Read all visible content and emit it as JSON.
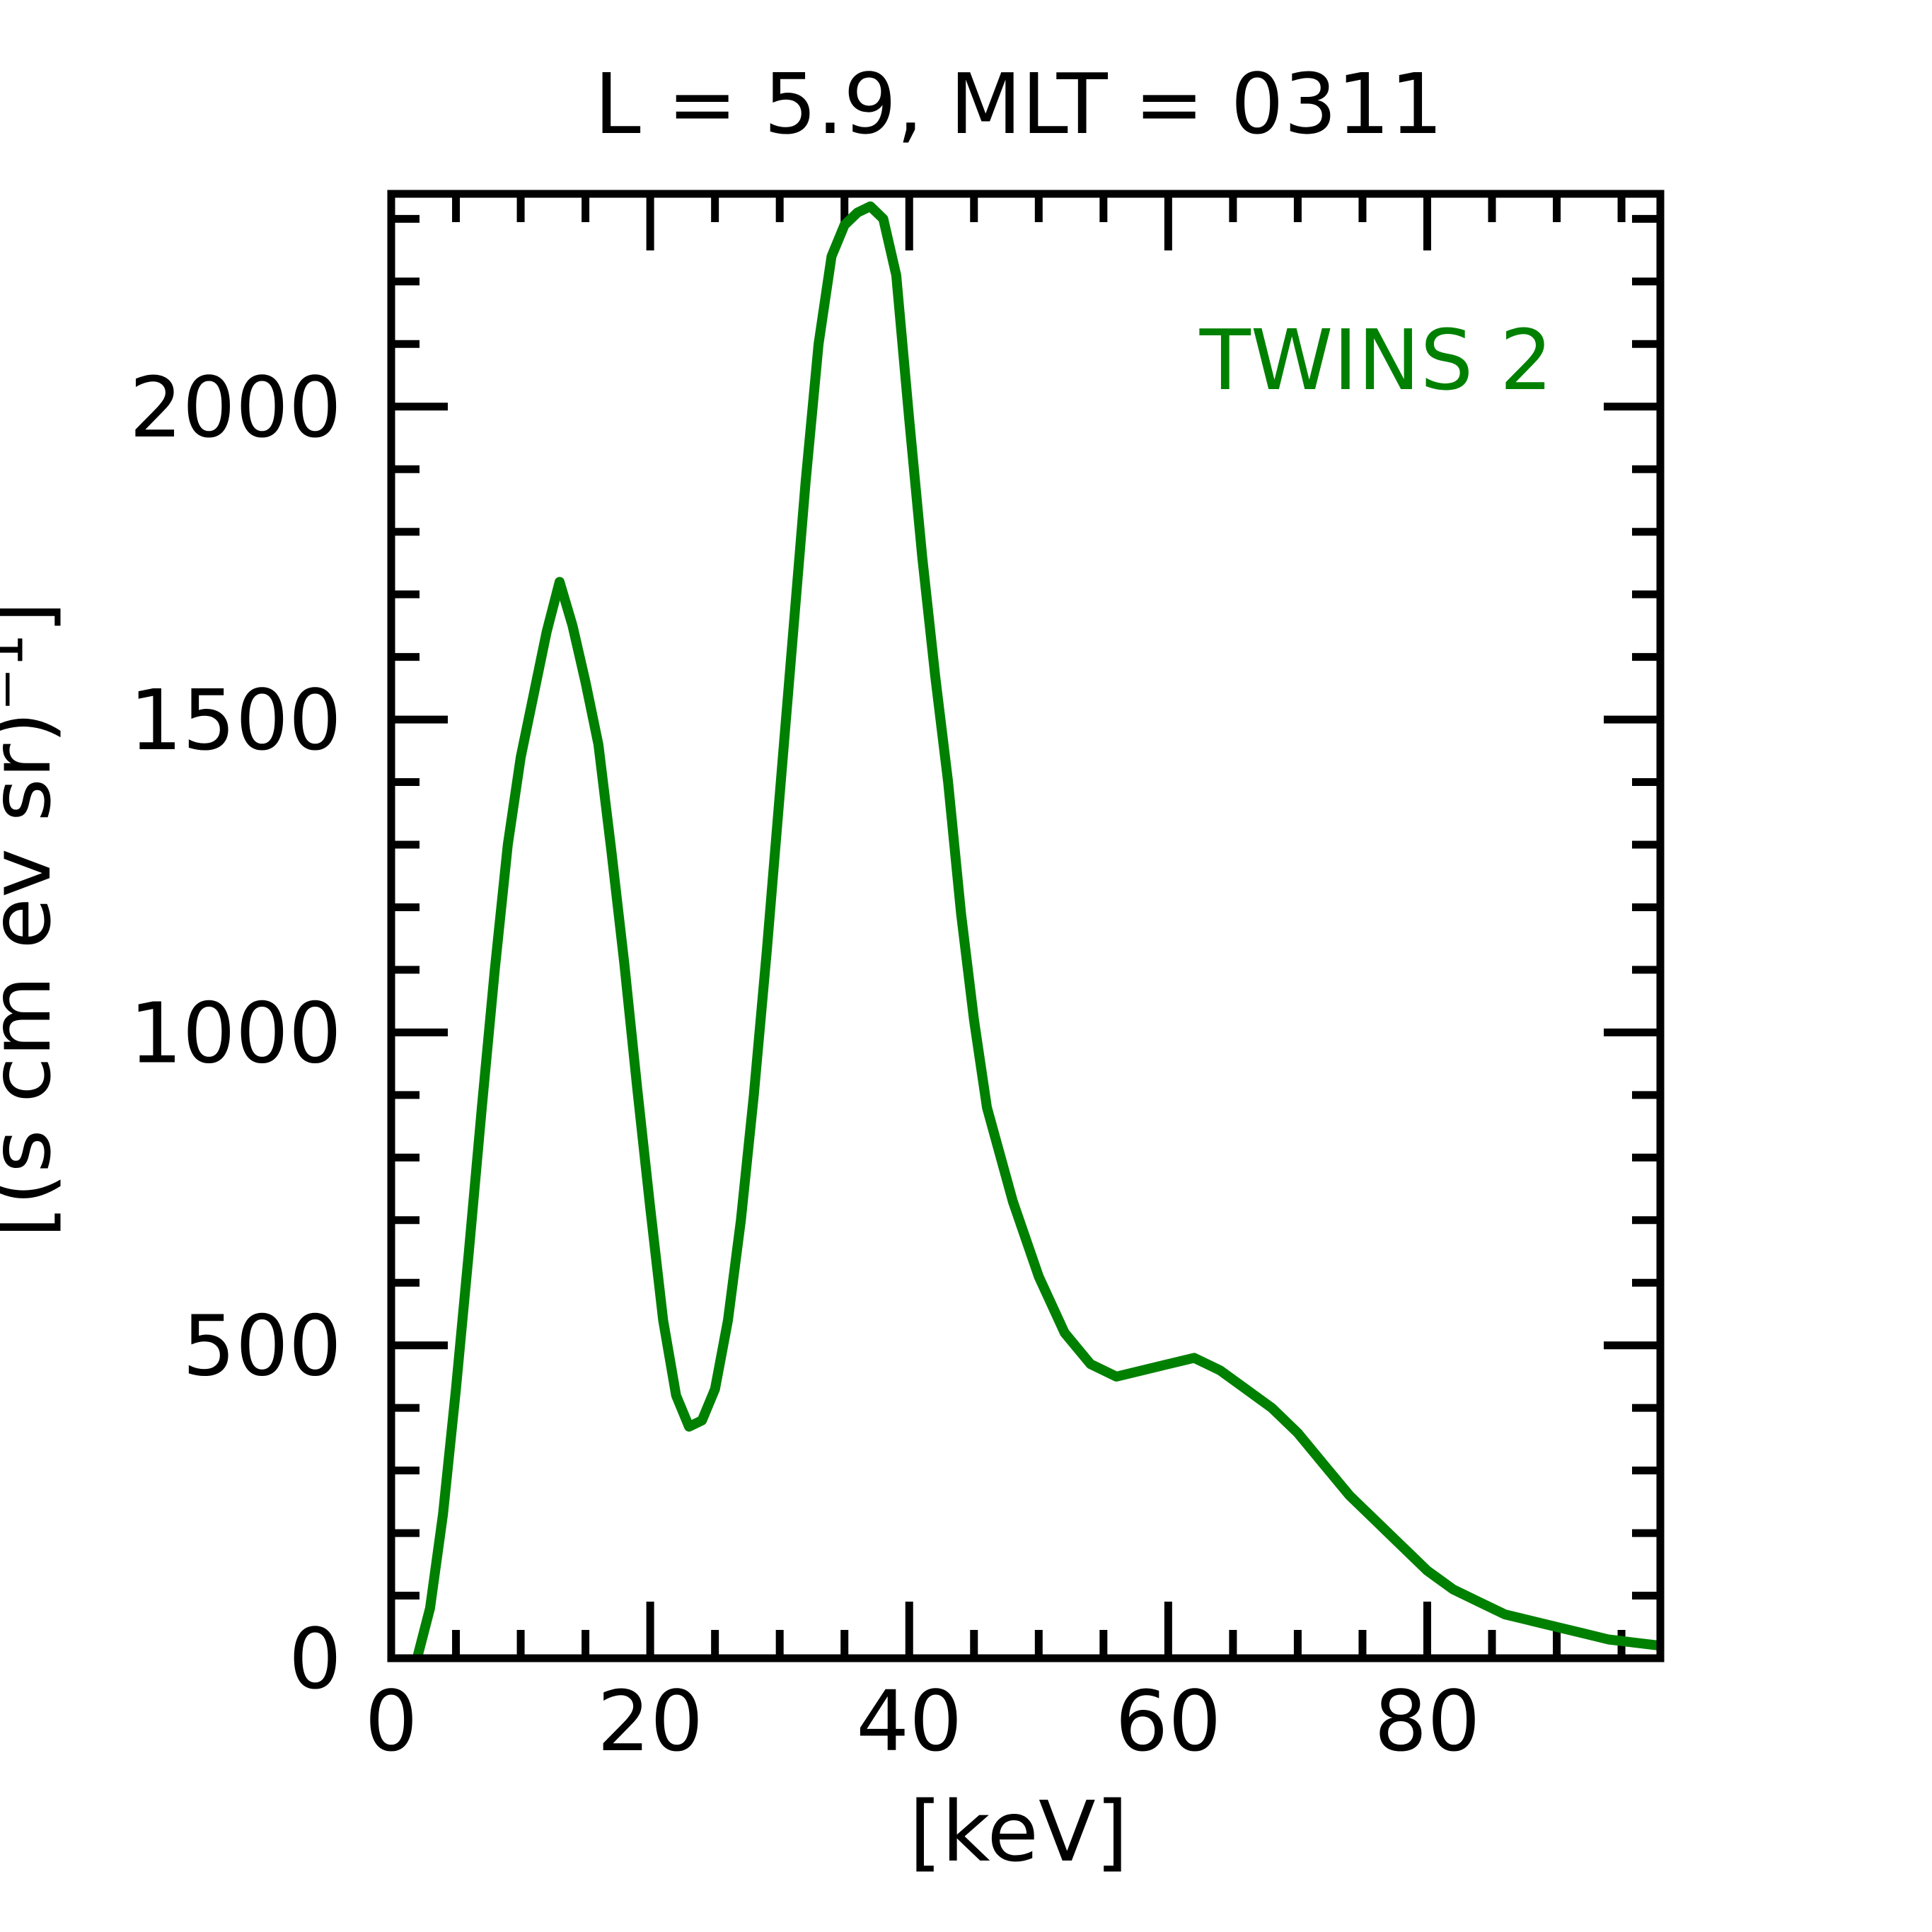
{
  "chart_data": {
    "type": "line",
    "title": "L =  5.9, MLT = 0311",
    "xlabel": "[keV]",
    "ylabel": "[(s cm ev sr)⁻¹]",
    "xlim": [
      0,
      98
    ],
    "ylim": [
      0,
      2340
    ],
    "x_ticks": [
      0,
      20,
      40,
      60,
      80
    ],
    "x_tick_labels": [
      "0",
      "20",
      "40",
      "60",
      "80"
    ],
    "y_ticks": [
      0,
      500,
      1000,
      1500,
      2000
    ],
    "y_tick_labels": [
      "0",
      "500",
      "1000",
      "1500",
      "2000"
    ],
    "x_minor_step": 5,
    "y_minor_step": 100,
    "grid": false,
    "legend_position": "top-right",
    "series": [
      {
        "name": "TWINS 2",
        "color": "#008000",
        "x": [
          2,
          3,
          4,
          5,
          6,
          7,
          8,
          9,
          10,
          11,
          12,
          13,
          14,
          15,
          16,
          17,
          18,
          19,
          20,
          21,
          22,
          23,
          24,
          25,
          26,
          27,
          28,
          29,
          30,
          31,
          32,
          33,
          34,
          35,
          36,
          37,
          38,
          39,
          40,
          41,
          42,
          43,
          44,
          45,
          46,
          48,
          50,
          52,
          54,
          56,
          58,
          60,
          62,
          64,
          66,
          68,
          70,
          72,
          74,
          76,
          78,
          80,
          82,
          84,
          86,
          88,
          90,
          92,
          94,
          96,
          98
        ],
        "y": [
          0,
          80,
          230,
          430,
          650,
          880,
          1100,
          1300,
          1440,
          1540,
          1640,
          1720,
          1650,
          1560,
          1460,
          1290,
          1110,
          910,
          720,
          540,
          420,
          370,
          380,
          430,
          540,
          700,
          900,
          1130,
          1380,
          1630,
          1880,
          2100,
          2240,
          2290,
          2310,
          2320,
          2300,
          2210,
          1980,
          1760,
          1570,
          1400,
          1190,
          1020,
          880,
          730,
          610,
          520,
          470,
          450,
          460,
          470,
          480,
          460,
          430,
          400,
          360,
          310,
          260,
          220,
          180,
          140,
          110,
          90,
          70,
          60,
          50,
          40,
          30,
          25,
          20
        ]
      }
    ]
  }
}
